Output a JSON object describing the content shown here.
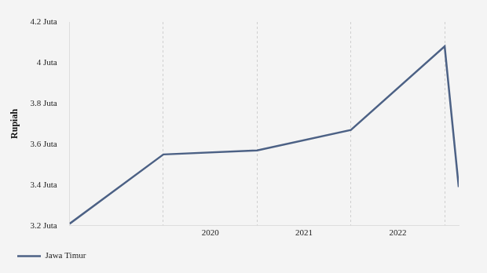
{
  "chart_data": {
    "type": "line",
    "x": [
      2019,
      2020,
      2021,
      2022,
      2023,
      2023.15
    ],
    "series": [
      {
        "name": "Jawa Timur",
        "color": "#4c6185",
        "values": [
          3.21,
          3.55,
          3.57,
          3.67,
          4.08,
          3.39
        ]
      }
    ],
    "xlim": [
      2019,
      2023.15
    ],
    "xticks": [
      {
        "value": 2020.5,
        "label": "2020"
      },
      {
        "value": 2021.5,
        "label": "2021"
      },
      {
        "value": 2022.5,
        "label": "2022"
      }
    ],
    "ylim": [
      3.2,
      4.2
    ],
    "yticks": [
      {
        "value": 3.2,
        "label": "3.2 Juta"
      },
      {
        "value": 3.4,
        "label": "3.4 Juta"
      },
      {
        "value": 3.6,
        "label": "3.6 Juta"
      },
      {
        "value": 3.8,
        "label": "3.8 Juta"
      },
      {
        "value": 4,
        "label": "4 Juta"
      },
      {
        "value": 4.2,
        "label": "4.2 Juta"
      }
    ],
    "y_label": "Rupiah",
    "grid": true,
    "legend": "bottom-left"
  }
}
